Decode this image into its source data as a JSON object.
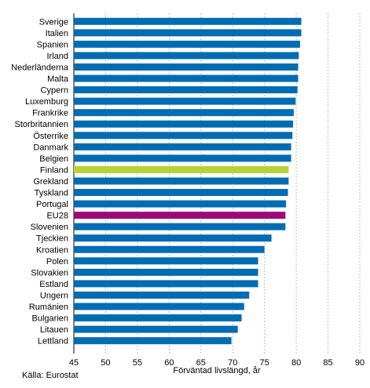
{
  "chart_data": {
    "type": "bar",
    "orientation": "horizontal",
    "categories": [
      "Sverige",
      "Italien",
      "Spanien",
      "Irland",
      "Nederländerna",
      "Malta",
      "Cypern",
      "Luxemburg",
      "Frankrike",
      "Storbritannien",
      "Österrike",
      "Danmark",
      "Belgien",
      "Finland",
      "Grekland",
      "Tyskland",
      "Portugal",
      "EU28",
      "Slovenien",
      "Tjeckien",
      "Kroatien",
      "Polen",
      "Slovakien",
      "Estland",
      "Ungern",
      "Rumänien",
      "Bulgarien",
      "Litauen",
      "Lettland"
    ],
    "values": [
      80.8,
      80.8,
      80.6,
      80.4,
      80.3,
      80.3,
      80.2,
      79.9,
      79.6,
      79.5,
      79.4,
      79.2,
      79.2,
      78.8,
      78.8,
      78.7,
      78.4,
      78.3,
      78.3,
      76.1,
      75.0,
      74.0,
      74.0,
      74.0,
      72.6,
      71.8,
      71.4,
      70.8,
      69.8
    ],
    "xlabel": "Förväntad livslängd, år",
    "xlim": [
      45,
      90
    ],
    "xticks": [
      45,
      50,
      55,
      60,
      65,
      70,
      75,
      80,
      85,
      90
    ],
    "grid": true,
    "colors": {
      "default": "#006cb3",
      "highlight": {
        "Finland": "#b5d334",
        "EU28": "#9c0a7d"
      },
      "grid": "#bdbdbd"
    }
  },
  "source": "Källa: Eurostat"
}
